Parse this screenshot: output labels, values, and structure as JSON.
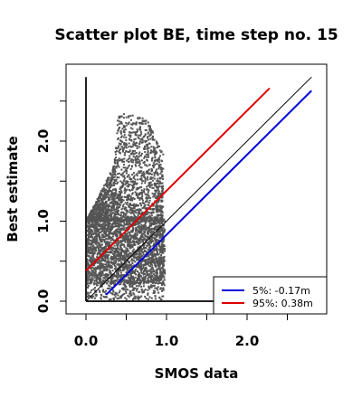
{
  "chart_data": {
    "type": "scatter",
    "title": "Scatter plot BE, time step no. 15",
    "xlabel": "SMOS data",
    "ylabel": "Best estimate",
    "xlim": [
      -0.25,
      2.9
    ],
    "ylim": [
      -0.15,
      2.9
    ],
    "x_ticks": [
      0.0,
      0.5,
      1.0,
      1.5,
      2.0,
      2.5
    ],
    "x_tick_labels": [
      "0.0",
      "",
      "1.0",
      "",
      "2.0",
      ""
    ],
    "y_ticks": [
      0.0,
      0.5,
      1.0,
      1.5,
      2.0,
      2.5
    ],
    "y_tick_labels": [
      "0.0",
      "",
      "1.0",
      "",
      "2.0",
      ""
    ],
    "grid": false,
    "legend_position": "bottom-right",
    "point_color": "#555555",
    "point_cloud": {
      "x_range": [
        0.0,
        0.98
      ],
      "main_y_range": [
        0.22,
        1.05
      ],
      "upper_envelope": [
        [
          0.0,
          1.0
        ],
        [
          0.35,
          1.7
        ],
        [
          0.4,
          2.35
        ],
        [
          0.75,
          2.3
        ],
        [
          0.95,
          1.85
        ]
      ],
      "vertical_spike": {
        "x": 0.0,
        "y_range": [
          0.0,
          2.8
        ]
      },
      "baseline_segment": {
        "y": 0.0,
        "x_range": [
          0.0,
          2.8
        ]
      }
    },
    "series": [
      {
        "label": "",
        "color": "#000000",
        "slope": 1.0,
        "intercept": 0.0,
        "x_range": [
          0.0,
          2.8
        ]
      },
      {
        "label": "5%: -0.17m",
        "color": "#0000dd",
        "slope": 1.0,
        "intercept": -0.17,
        "x_range": [
          0.25,
          2.8
        ]
      },
      {
        "label": "95%:  0.38m",
        "color": "#dd0000",
        "slope": 1.0,
        "intercept": 0.38,
        "x_range": [
          0.0,
          2.28
        ]
      }
    ]
  }
}
